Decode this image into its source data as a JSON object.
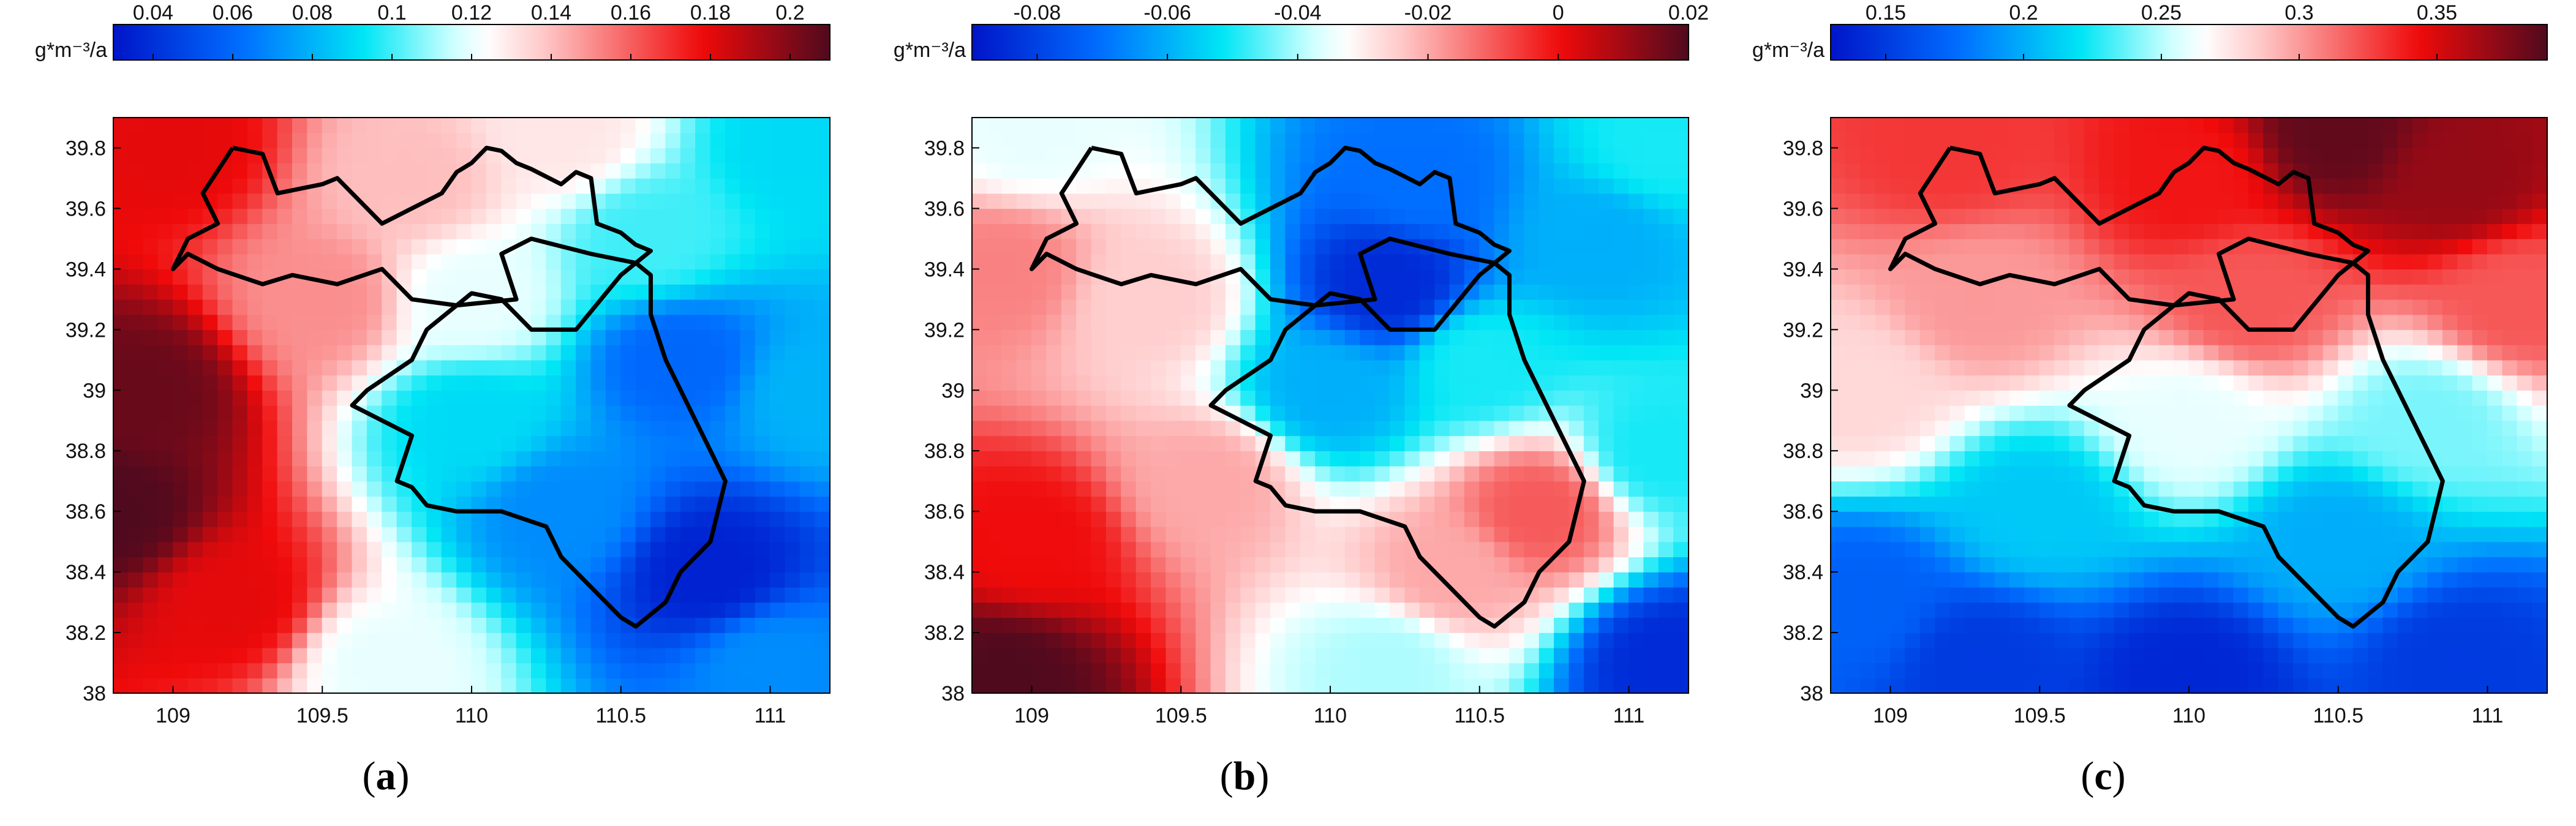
{
  "unit_label": "g*m⁻³/a",
  "chart_data": [
    {
      "type": "heatmap",
      "panel_label": "a",
      "colorbar": {
        "ticks": [
          "0.04",
          "0.06",
          "0.08",
          "0.1",
          "0.12",
          "0.14",
          "0.16",
          "0.18",
          "0.2"
        ],
        "range": [
          0.03,
          0.21
        ]
      },
      "xlim": [
        108.8,
        111.2
      ],
      "ylim": [
        38.0,
        39.9
      ],
      "xticks": [
        "109",
        "109.5",
        "110",
        "110.5",
        "111"
      ],
      "yticks": [
        "38",
        "38.2",
        "38.4",
        "38.6",
        "38.8",
        "39",
        "39.2",
        "39.4",
        "39.6",
        "39.8"
      ],
      "field_points": [
        {
          "x": 108.8,
          "y": 38.6,
          "value": 0.21
        },
        {
          "x": 108.9,
          "y": 39.0,
          "value": 0.205
        },
        {
          "x": 109.0,
          "y": 39.8,
          "value": 0.18
        },
        {
          "x": 109.2,
          "y": 38.3,
          "value": 0.18
        },
        {
          "x": 109.5,
          "y": 39.3,
          "value": 0.15
        },
        {
          "x": 109.8,
          "y": 39.7,
          "value": 0.14
        },
        {
          "x": 110.0,
          "y": 39.3,
          "value": 0.12
        },
        {
          "x": 110.3,
          "y": 39.85,
          "value": 0.13
        },
        {
          "x": 110.6,
          "y": 39.5,
          "value": 0.1
        },
        {
          "x": 111.1,
          "y": 39.8,
          "value": 0.09
        },
        {
          "x": 109.7,
          "y": 38.1,
          "value": 0.12
        },
        {
          "x": 110.0,
          "y": 38.9,
          "value": 0.09
        },
        {
          "x": 110.3,
          "y": 38.6,
          "value": 0.07
        },
        {
          "x": 110.7,
          "y": 39.1,
          "value": 0.06
        },
        {
          "x": 110.8,
          "y": 38.4,
          "value": 0.035
        },
        {
          "x": 111.0,
          "y": 38.1,
          "value": 0.07
        },
        {
          "x": 111.15,
          "y": 39.0,
          "value": 0.08
        }
      ]
    },
    {
      "type": "heatmap",
      "panel_label": "b",
      "colorbar": {
        "ticks": [
          "-0.08",
          "-0.06",
          "-0.04",
          "-0.02",
          "0",
          "0.02"
        ],
        "range": [
          -0.09,
          0.02
        ]
      },
      "xlim": [
        108.8,
        111.2
      ],
      "ylim": [
        38.0,
        39.9
      ],
      "xticks": [
        "109",
        "109.5",
        "110",
        "110.5",
        "111"
      ],
      "yticks": [
        "38",
        "38.2",
        "38.4",
        "38.6",
        "38.8",
        "39",
        "39.2",
        "39.4",
        "39.6",
        "39.8"
      ],
      "field_points": [
        {
          "x": 108.9,
          "y": 38.05,
          "value": 0.02
        },
        {
          "x": 109.0,
          "y": 38.5,
          "value": 0.0
        },
        {
          "x": 108.9,
          "y": 39.4,
          "value": -0.015
        },
        {
          "x": 109.0,
          "y": 39.85,
          "value": -0.035
        },
        {
          "x": 109.4,
          "y": 39.3,
          "value": -0.025
        },
        {
          "x": 109.6,
          "y": 38.7,
          "value": -0.02
        },
        {
          "x": 110.2,
          "y": 39.35,
          "value": -0.085
        },
        {
          "x": 110.3,
          "y": 39.7,
          "value": -0.07
        },
        {
          "x": 110.0,
          "y": 39.0,
          "value": -0.06
        },
        {
          "x": 110.9,
          "y": 39.5,
          "value": -0.06
        },
        {
          "x": 110.5,
          "y": 39.1,
          "value": -0.05
        },
        {
          "x": 110.7,
          "y": 38.6,
          "value": -0.01
        },
        {
          "x": 110.4,
          "y": 38.4,
          "value": -0.02
        },
        {
          "x": 110.2,
          "y": 38.1,
          "value": -0.04
        },
        {
          "x": 111.15,
          "y": 38.1,
          "value": -0.085
        },
        {
          "x": 111.1,
          "y": 38.8,
          "value": -0.05
        },
        {
          "x": 111.1,
          "y": 39.8,
          "value": -0.05
        }
      ]
    },
    {
      "type": "heatmap",
      "panel_label": "c",
      "colorbar": {
        "ticks": [
          "0.15",
          "0.2",
          "0.25",
          "0.3",
          "0.35"
        ],
        "range": [
          0.13,
          0.39
        ]
      },
      "xlim": [
        108.8,
        111.2
      ],
      "ylim": [
        38.0,
        39.9
      ],
      "xticks": [
        "109",
        "109.5",
        "110",
        "110.5",
        "111"
      ],
      "yticks": [
        "38",
        "38.2",
        "38.4",
        "38.6",
        "38.8",
        "39",
        "39.2",
        "39.4",
        "39.6",
        "39.8"
      ],
      "field_points": [
        {
          "x": 110.5,
          "y": 39.85,
          "value": 0.385
        },
        {
          "x": 110.9,
          "y": 39.7,
          "value": 0.37
        },
        {
          "x": 110.0,
          "y": 39.7,
          "value": 0.34
        },
        {
          "x": 109.2,
          "y": 39.8,
          "value": 0.33
        },
        {
          "x": 109.3,
          "y": 39.3,
          "value": 0.3
        },
        {
          "x": 110.2,
          "y": 39.3,
          "value": 0.32
        },
        {
          "x": 111.1,
          "y": 39.3,
          "value": 0.32
        },
        {
          "x": 108.9,
          "y": 39.0,
          "value": 0.28
        },
        {
          "x": 110.0,
          "y": 38.9,
          "value": 0.26
        },
        {
          "x": 110.8,
          "y": 38.9,
          "value": 0.24
        },
        {
          "x": 109.5,
          "y": 38.6,
          "value": 0.21
        },
        {
          "x": 110.5,
          "y": 38.5,
          "value": 0.2
        },
        {
          "x": 109.3,
          "y": 38.1,
          "value": 0.15
        },
        {
          "x": 110.0,
          "y": 38.05,
          "value": 0.14
        },
        {
          "x": 110.9,
          "y": 38.1,
          "value": 0.15
        },
        {
          "x": 108.9,
          "y": 38.3,
          "value": 0.17
        }
      ]
    }
  ],
  "boundary": [
    [
      109.2,
      39.8
    ],
    [
      109.3,
      39.78
    ],
    [
      109.35,
      39.65
    ],
    [
      109.5,
      39.68
    ],
    [
      109.55,
      39.7
    ],
    [
      109.7,
      39.55
    ],
    [
      109.8,
      39.6
    ],
    [
      109.9,
      39.65
    ],
    [
      109.95,
      39.72
    ],
    [
      110.0,
      39.75
    ],
    [
      110.05,
      39.8
    ],
    [
      110.1,
      39.79
    ],
    [
      110.15,
      39.75
    ],
    [
      110.2,
      39.73
    ],
    [
      110.3,
      39.68
    ],
    [
      110.35,
      39.72
    ],
    [
      110.4,
      39.7
    ],
    [
      110.42,
      39.55
    ],
    [
      110.5,
      39.52
    ],
    [
      110.55,
      39.48
    ],
    [
      110.6,
      39.46
    ],
    [
      110.55,
      39.42
    ],
    [
      110.4,
      39.45
    ],
    [
      110.2,
      39.5
    ],
    [
      110.1,
      39.45
    ],
    [
      110.15,
      39.3
    ],
    [
      109.95,
      39.28
    ],
    [
      109.85,
      39.2
    ],
    [
      109.8,
      39.1
    ],
    [
      109.65,
      39.0
    ],
    [
      109.6,
      38.95
    ],
    [
      109.7,
      38.9
    ],
    [
      109.8,
      38.85
    ],
    [
      109.75,
      38.7
    ],
    [
      109.8,
      38.68
    ],
    [
      109.85,
      38.62
    ],
    [
      109.95,
      38.6
    ],
    [
      110.1,
      38.6
    ],
    [
      110.25,
      38.55
    ],
    [
      110.3,
      38.45
    ],
    [
      110.4,
      38.35
    ],
    [
      110.5,
      38.25
    ],
    [
      110.55,
      38.22
    ],
    [
      110.65,
      38.3
    ],
    [
      110.7,
      38.4
    ],
    [
      110.8,
      38.5
    ],
    [
      110.85,
      38.7
    ],
    [
      110.8,
      38.8
    ],
    [
      110.75,
      38.9
    ],
    [
      110.65,
      39.1
    ],
    [
      110.6,
      39.25
    ],
    [
      110.6,
      39.38
    ],
    [
      110.55,
      39.42
    ],
    [
      110.5,
      39.38
    ],
    [
      110.35,
      39.2
    ],
    [
      110.2,
      39.2
    ],
    [
      110.1,
      39.3
    ],
    [
      110.0,
      39.32
    ],
    [
      109.95,
      39.28
    ]
  ],
  "boundary_west": [
    [
      109.95,
      39.28
    ],
    [
      109.8,
      39.3
    ],
    [
      109.7,
      39.4
    ],
    [
      109.55,
      39.35
    ],
    [
      109.4,
      39.38
    ],
    [
      109.3,
      39.35
    ],
    [
      109.15,
      39.4
    ],
    [
      109.05,
      39.45
    ],
    [
      109.0,
      39.4
    ],
    [
      109.05,
      39.5
    ],
    [
      109.15,
      39.55
    ],
    [
      109.1,
      39.65
    ],
    [
      109.2,
      39.8
    ]
  ]
}
